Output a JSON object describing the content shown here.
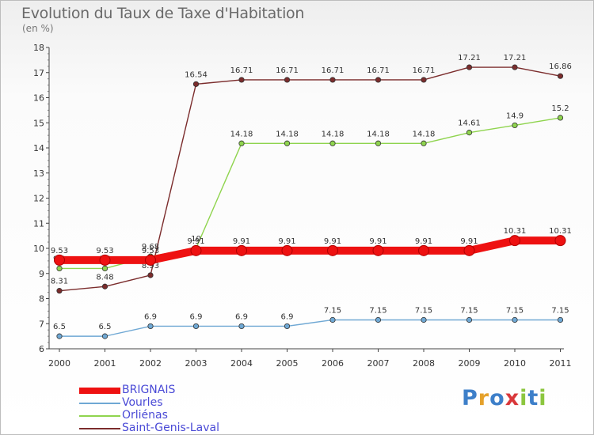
{
  "chart_data": {
    "type": "line",
    "title": "Evolution du Taux de Taxe d'Habitation",
    "subtitle": "(en %)",
    "x": [
      "2000",
      "2001",
      "2002",
      "2003",
      "2004",
      "2005",
      "2006",
      "2007",
      "2008",
      "2009",
      "2010",
      "2011"
    ],
    "ylim": [
      6,
      18
    ],
    "yticks": [
      "6",
      "7",
      "8",
      "9",
      "10",
      "11",
      "12",
      "13",
      "14",
      "15",
      "16",
      "17",
      "18"
    ],
    "grid": false,
    "legend_position": "bottom-left",
    "series": [
      {
        "name": "Saint-Genis-Laval",
        "color": "#7b2c2c",
        "values": [
          8.31,
          8.48,
          8.93,
          16.54,
          16.71,
          16.71,
          16.71,
          16.71,
          16.71,
          17.21,
          17.21,
          16.86
        ],
        "labels": [
          "8.31",
          "8.48",
          "8.93",
          "16.54",
          "16.71",
          "16.71",
          "16.71",
          "16.71",
          "16.71",
          "17.21",
          "17.21",
          "16.86"
        ]
      },
      {
        "name": "Orliénas",
        "color": "#8fd44e",
        "values": [
          9.2,
          9.2,
          9.68,
          10.0,
          14.18,
          14.18,
          14.18,
          14.18,
          14.18,
          14.61,
          14.9,
          15.2
        ],
        "labels": [
          "9.2",
          "9.2",
          "9.68",
          "10",
          "14.18",
          "14.18",
          "14.18",
          "14.18",
          "14.18",
          "14.61",
          "14.9",
          "15.2"
        ]
      },
      {
        "name": "Vourles",
        "color": "#6fa8d4",
        "values": [
          6.5,
          6.5,
          6.9,
          6.9,
          6.9,
          6.9,
          7.15,
          7.15,
          7.15,
          7.15,
          7.15,
          7.15
        ],
        "labels": [
          "6.5",
          "6.5",
          "6.9",
          "6.9",
          "6.9",
          "6.9",
          "7.15",
          "7.15",
          "7.15",
          "7.15",
          "7.15",
          "7.15"
        ]
      },
      {
        "name": "BRIGNAIS",
        "color": "#ee1111",
        "values": [
          9.53,
          9.53,
          9.53,
          9.91,
          9.91,
          9.91,
          9.91,
          9.91,
          9.91,
          9.91,
          10.31,
          10.31
        ],
        "labels": [
          "9.53",
          "9.53",
          "9.53",
          "9.91",
          "9.91",
          "9.91",
          "9.91",
          "9.91",
          "9.91",
          "9.91",
          "10.31",
          "10.31"
        ]
      }
    ],
    "legend_order": [
      "BRIGNAIS",
      "Vourles",
      "Orliénas",
      "Saint-Genis-Laval"
    ]
  },
  "legend": {
    "items": [
      {
        "label": "BRIGNAIS",
        "color": "#ee1111"
      },
      {
        "label": "Vourles",
        "color": "#6fa8d4"
      },
      {
        "label": "Orliénas",
        "color": "#8fd44e"
      },
      {
        "label": "Saint-Genis-Laval",
        "color": "#7b2c2c"
      }
    ]
  },
  "brand": {
    "text": [
      "P",
      "r",
      "o",
      "x",
      "i",
      "t",
      "i"
    ],
    "colors": [
      "#3d7fc9",
      "#e5a12b",
      "#3d7fc9",
      "#d9373a",
      "#8cc63f",
      "#3d7fc9",
      "#8cc63f"
    ]
  }
}
